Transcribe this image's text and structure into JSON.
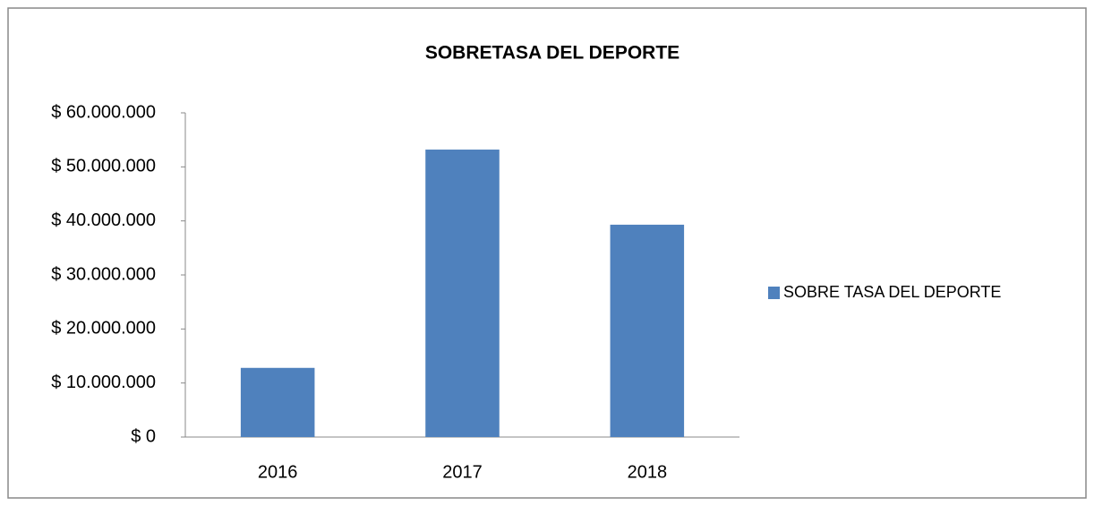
{
  "chart_data": {
    "type": "bar",
    "title": "SOBRETASA DEL DEPORTE",
    "categories": [
      "2016",
      "2017",
      "2018"
    ],
    "series": [
      {
        "name": "SOBRE TASA DEL DEPORTE",
        "color": "#4f81bd",
        "values": [
          12800000,
          53200000,
          39300000
        ]
      }
    ],
    "ylim": [
      0,
      60000000
    ],
    "yticks": [
      {
        "value": 0,
        "label": "$ 0"
      },
      {
        "value": 10000000,
        "label": "$ 10.000.000"
      },
      {
        "value": 20000000,
        "label": "$ 20.000.000"
      },
      {
        "value": 30000000,
        "label": "$ 30.000.000"
      },
      {
        "value": 40000000,
        "label": "$ 40.000.000"
      },
      {
        "value": 50000000,
        "label": "$ 50.000.000"
      },
      {
        "value": 60000000,
        "label": "$ 60.000.000"
      }
    ],
    "grid": false,
    "legend": "right"
  }
}
